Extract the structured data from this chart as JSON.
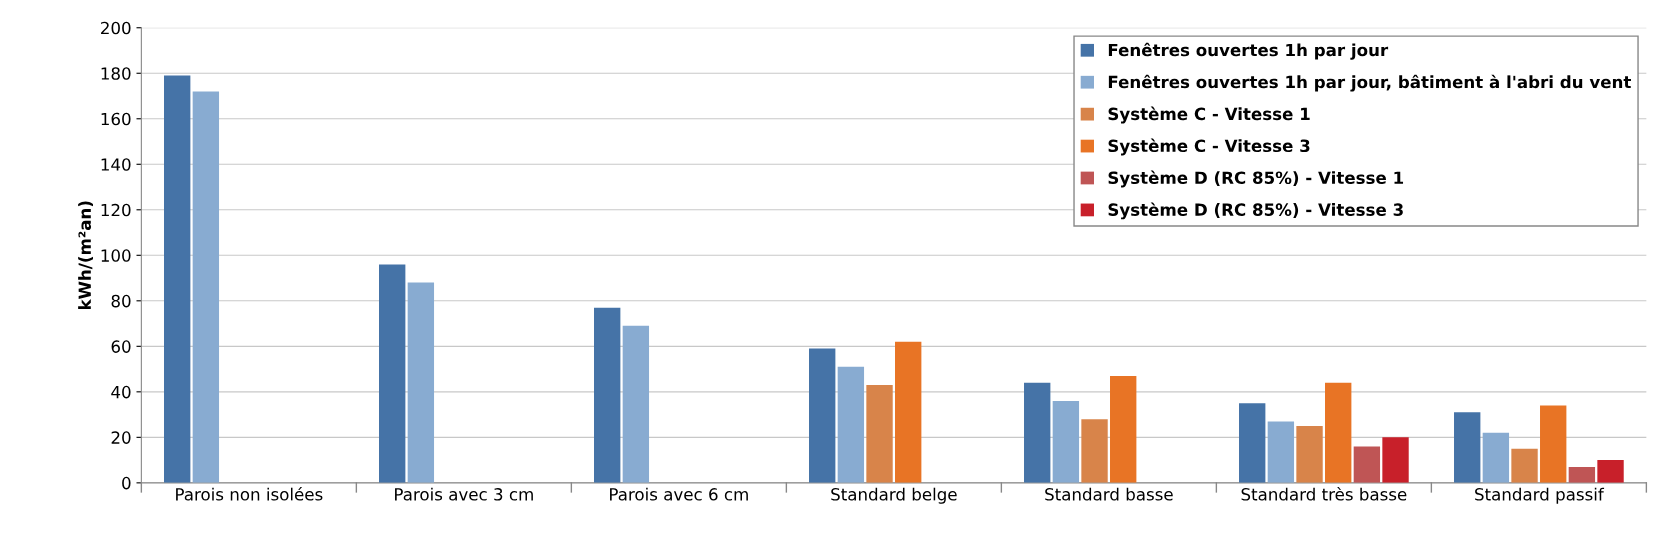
{
  "chart_data": {
    "type": "bar",
    "ylabel": "kWh/(m²an)",
    "categories": [
      "Parois non isolées",
      "Parois avec 3 cm",
      "Parois avec 6 cm",
      "Standard belge",
      "Standard basse",
      "Standard très basse",
      "Standard passif"
    ],
    "series": [
      {
        "name": "Fenêtres ouvertes 1h par jour",
        "color": "#4573a7",
        "values": [
          179,
          96,
          77,
          59,
          44,
          35,
          31
        ]
      },
      {
        "name": "Fenêtres ouvertes 1h par jour, bâtiment à l'abri du vent",
        "color": "#88abd1",
        "values": [
          172,
          88,
          69,
          51,
          36,
          27,
          22
        ]
      },
      {
        "name": "Système C - Vitesse 1",
        "color": "#d8844a",
        "values": [
          null,
          null,
          null,
          43,
          28,
          25,
          15
        ]
      },
      {
        "name": "Système C - Vitesse 3",
        "color": "#e87425",
        "values": [
          null,
          null,
          null,
          62,
          47,
          44,
          34
        ]
      },
      {
        "name": "Système D (RC 85%) - Vitesse 1",
        "color": "#bf5555",
        "values": [
          null,
          null,
          null,
          null,
          null,
          16,
          7
        ]
      },
      {
        "name": "Système D (RC 85%) - Vitesse 3",
        "color": "#c8202a",
        "values": [
          null,
          null,
          null,
          null,
          null,
          20,
          10
        ]
      }
    ],
    "ylim": [
      0,
      200
    ],
    "yticks": [
      0,
      20,
      40,
      60,
      80,
      100,
      120,
      140,
      160,
      180,
      200
    ],
    "grid": "y",
    "legend": "top right"
  }
}
